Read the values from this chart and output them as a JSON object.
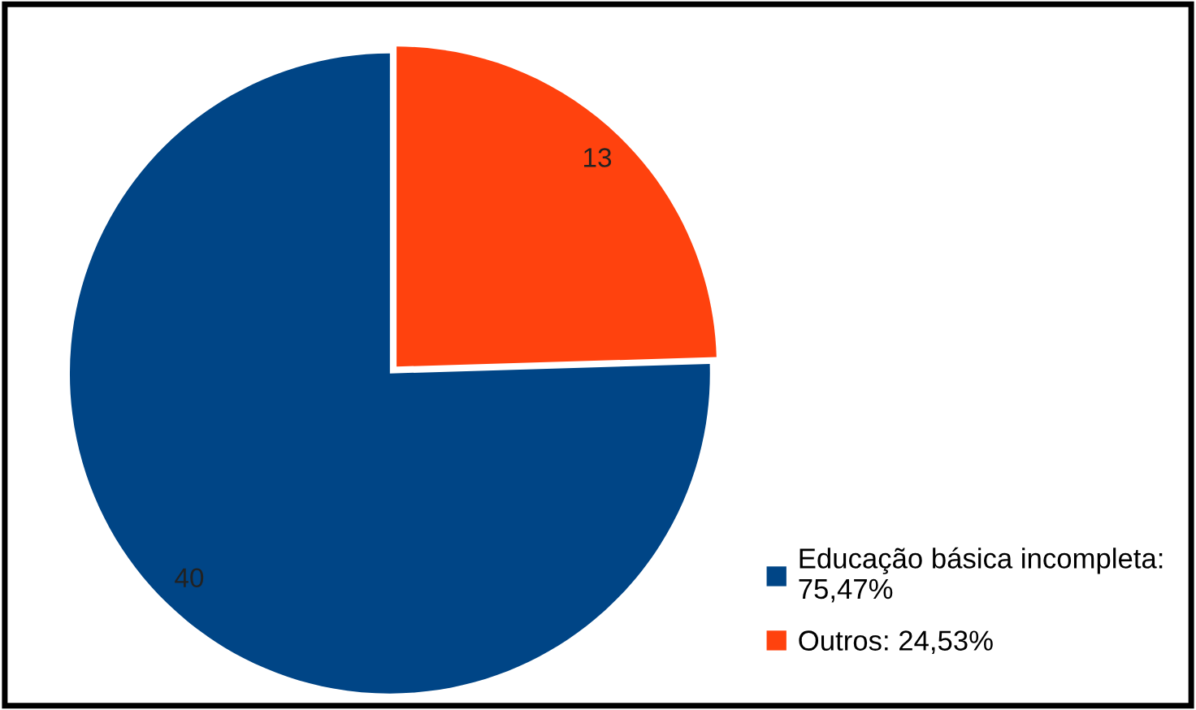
{
  "chart_data": {
    "type": "pie",
    "categories": [
      "Educação básica incompleta:\n75,47%",
      "Outros: 24,53%"
    ],
    "values": [
      40,
      13
    ],
    "colors": [
      "#004586",
      "#ff420e"
    ],
    "data_labels": true,
    "legend": "bottom right"
  }
}
